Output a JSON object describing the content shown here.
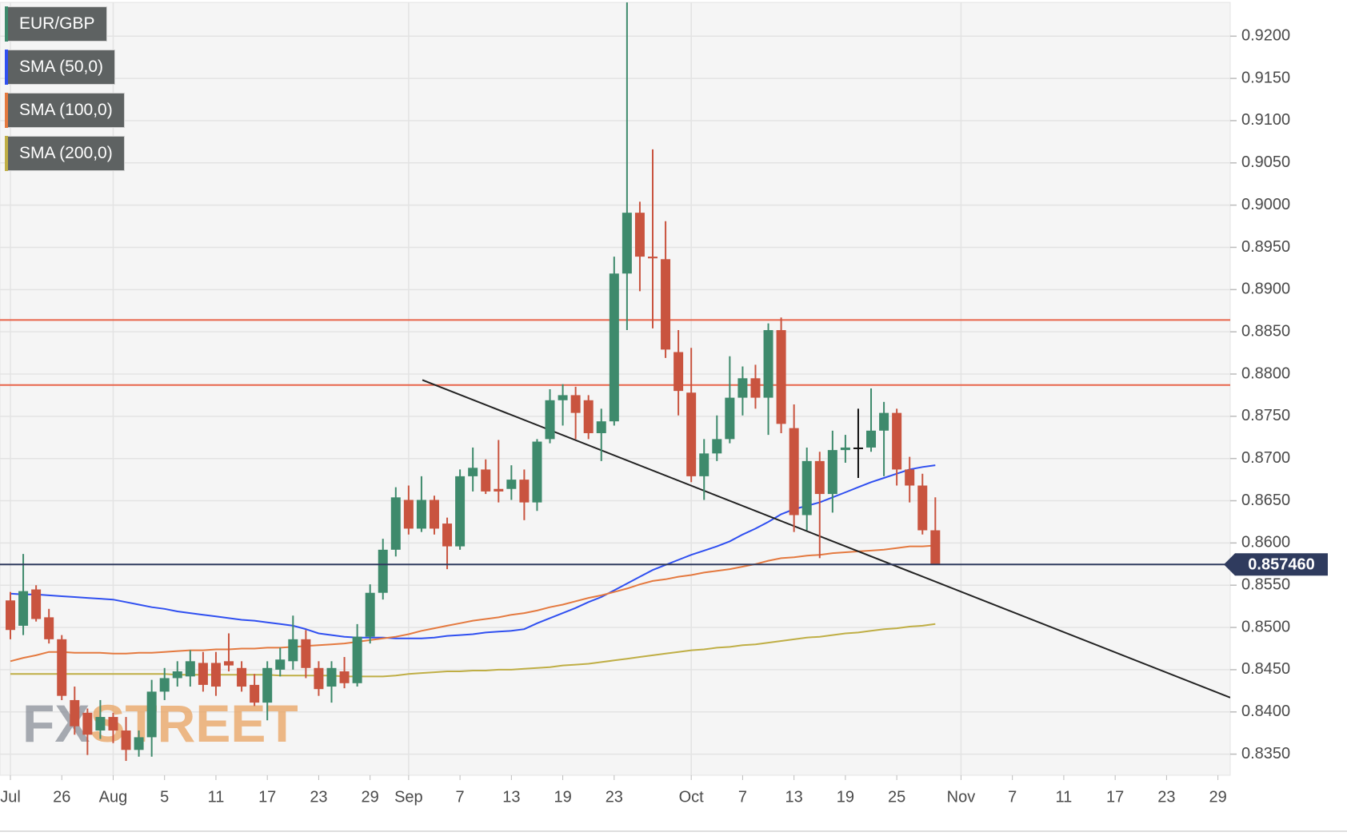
{
  "chart_data": {
    "type": "candlestick",
    "categories": [
      "Jul",
      null,
      null,
      null,
      "26",
      null,
      null,
      null,
      "Aug",
      null,
      null,
      null,
      "5",
      null,
      null,
      null,
      "11",
      null,
      null,
      null,
      "17",
      null,
      null,
      null,
      "23",
      null,
      null,
      null,
      "29",
      null,
      null,
      "Sep",
      null,
      null,
      null,
      "7",
      null,
      null,
      null,
      "13",
      null,
      null,
      null,
      "19",
      null,
      null,
      null,
      "23",
      null,
      null,
      null,
      null,
      null,
      "Oct",
      null,
      null,
      null,
      "7",
      null,
      null,
      null,
      "13",
      null,
      null,
      null,
      "19",
      null,
      null,
      null,
      "25",
      null,
      null,
      null,
      null,
      "Nov",
      null,
      null,
      null,
      "7",
      null,
      null,
      null,
      "11",
      null,
      null,
      null,
      "17",
      null,
      null,
      null,
      "23",
      null,
      null,
      null,
      "29"
    ],
    "series": [
      {
        "name": "EUR/GBP",
        "type": "candlestick",
        "up_color": "#3e8a6c",
        "down_color": "#c9543f",
        "doji_color": "#111111",
        "open": [
          0.8532,
          0.8502,
          0.8545,
          0.8512,
          0.8486,
          0.8414,
          0.8399,
          0.8378,
          0.8394,
          0.8378,
          0.8355,
          0.837,
          0.8424,
          0.844,
          0.8442,
          0.8458,
          0.8458,
          0.846,
          0.8452,
          0.8432,
          0.8411,
          0.845,
          0.846,
          0.8486,
          0.8452,
          0.843,
          0.8448,
          0.8434,
          0.8489,
          0.8541,
          0.8592,
          0.8651,
          0.8617,
          0.8651,
          0.8623,
          0.8596,
          0.8679,
          0.8687,
          0.8664,
          0.8664,
          0.8675,
          0.8648,
          0.8723,
          0.8769,
          0.8775,
          0.8769,
          0.873,
          0.8744,
          0.8919,
          0.8991,
          0.8939,
          0.8936,
          0.8826,
          0.8778,
          0.8679,
          0.8706,
          0.8723,
          0.8772,
          0.8795,
          0.8772,
          0.8852,
          0.8736,
          0.8633,
          0.8697,
          0.8658,
          0.871,
          0.8713,
          0.8713,
          0.8733,
          0.8754,
          0.8687,
          0.8668,
          0.8615,
          null,
          null,
          null,
          null,
          null,
          null,
          null,
          null,
          null,
          null,
          null,
          null,
          null,
          null,
          null,
          null,
          null,
          null,
          null,
          null,
          null,
          null
        ],
        "high": [
          0.8542,
          0.8587,
          0.855,
          0.8522,
          0.8491,
          0.843,
          0.8404,
          0.8414,
          0.8399,
          0.8394,
          0.8378,
          0.8438,
          0.8452,
          0.846,
          0.8473,
          0.8471,
          0.8471,
          0.8493,
          0.846,
          0.8445,
          0.846,
          0.8476,
          0.8514,
          0.8497,
          0.846,
          0.846,
          0.8465,
          0.8504,
          0.8551,
          0.8605,
          0.8666,
          0.8668,
          0.8679,
          0.8656,
          0.863,
          0.8687,
          0.8713,
          0.8699,
          0.8722,
          0.8692,
          0.8687,
          0.8723,
          0.8782,
          0.8788,
          0.8785,
          0.8775,
          0.8759,
          0.8939,
          0.924,
          0.9004,
          0.9066,
          0.8981,
          0.8852,
          0.8831,
          0.8723,
          0.8751,
          0.8821,
          0.8809,
          0.8811,
          0.886,
          0.8867,
          0.8764,
          0.8713,
          0.8708,
          0.8733,
          0.8728,
          0.8759,
          0.8783,
          0.8767,
          0.8759,
          0.8702,
          0.8682,
          0.8654,
          null,
          null,
          null,
          null,
          null,
          null,
          null,
          null,
          null,
          null,
          null,
          null,
          null,
          null,
          null,
          null,
          null,
          null,
          null,
          null,
          null,
          null
        ],
        "low": [
          0.8486,
          0.8491,
          0.8507,
          0.8481,
          0.8414,
          0.8373,
          0.8349,
          0.8368,
          0.8363,
          0.8342,
          0.8347,
          0.8347,
          0.8414,
          0.843,
          0.843,
          0.8424,
          0.8419,
          0.8448,
          0.8424,
          0.8407,
          0.839,
          0.8442,
          0.845,
          0.844,
          0.8419,
          0.8411,
          0.8428,
          0.843,
          0.8481,
          0.8533,
          0.8584,
          0.861,
          0.8613,
          0.861,
          0.8569,
          0.8592,
          0.8661,
          0.8658,
          0.8648,
          0.8651,
          0.8627,
          0.8638,
          0.8718,
          0.8739,
          0.8723,
          0.8723,
          0.8697,
          0.8739,
          0.8852,
          0.8898,
          0.8854,
          0.8819,
          0.8751,
          0.8672,
          0.8651,
          0.8697,
          0.8718,
          0.8751,
          0.8759,
          0.8728,
          0.873,
          0.8613,
          0.8615,
          0.8582,
          0.8636,
          0.8695,
          0.8677,
          0.8708,
          0.8679,
          0.8668,
          0.8648,
          0.861,
          0.8574,
          null,
          null,
          null,
          null,
          null,
          null,
          null,
          null,
          null,
          null,
          null,
          null,
          null,
          null,
          null,
          null,
          null,
          null,
          null,
          null,
          null,
          null
        ],
        "close": [
          0.8497,
          0.8543,
          0.851,
          0.8486,
          0.8419,
          0.8383,
          0.8373,
          0.8394,
          0.8378,
          0.8355,
          0.837,
          0.8424,
          0.844,
          0.8448,
          0.846,
          0.8432,
          0.843,
          0.8455,
          0.843,
          0.8411,
          0.8452,
          0.8462,
          0.8486,
          0.8452,
          0.8427,
          0.8452,
          0.8434,
          0.8489,
          0.8541,
          0.8592,
          0.8654,
          0.8617,
          0.8651,
          0.8617,
          0.8596,
          0.8679,
          0.8689,
          0.8661,
          0.8661,
          0.8675,
          0.8648,
          0.872,
          0.8769,
          0.8775,
          0.8754,
          0.873,
          0.8744,
          0.8919,
          0.8991,
          0.8939,
          0.8937,
          0.8829,
          0.878,
          0.8679,
          0.8706,
          0.8723,
          0.8772,
          0.8795,
          0.8772,
          0.8852,
          0.8741,
          0.8633,
          0.8697,
          0.8658,
          0.871,
          0.8713,
          0.8713,
          0.8733,
          0.8754,
          0.8687,
          0.8668,
          0.8615,
          0.85746,
          null,
          null,
          null,
          null,
          null,
          null,
          null,
          null,
          null,
          null,
          null,
          null,
          null,
          null,
          null,
          null,
          null,
          null,
          null,
          null,
          null,
          null
        ]
      },
      {
        "name": "SMA (50,0)",
        "type": "line",
        "color": "#2f4ff0",
        "values": [
          0.854,
          0.8539,
          0.8539,
          0.8538,
          0.8537,
          0.8536,
          0.8535,
          0.8534,
          0.8533,
          0.853,
          0.8527,
          0.8524,
          0.8522,
          0.8519,
          0.8517,
          0.8515,
          0.8513,
          0.8511,
          0.8509,
          0.8508,
          0.8506,
          0.8504,
          0.8502,
          0.8498,
          0.8493,
          0.8491,
          0.8489,
          0.8488,
          0.8488,
          0.8488,
          0.8487,
          0.8487,
          0.8487,
          0.8488,
          0.849,
          0.8491,
          0.8492,
          0.8494,
          0.8495,
          0.8496,
          0.8498,
          0.8505,
          0.8511,
          0.8517,
          0.8523,
          0.853,
          0.8536,
          0.8544,
          0.8552,
          0.856,
          0.8568,
          0.8574,
          0.858,
          0.8586,
          0.8591,
          0.8596,
          0.8602,
          0.861,
          0.8617,
          0.8625,
          0.8634,
          0.864,
          0.8644,
          0.8648,
          0.8654,
          0.866,
          0.8666,
          0.8672,
          0.8677,
          0.8682,
          0.8687,
          0.869,
          0.8692,
          null,
          null,
          null,
          null,
          null,
          null,
          null,
          null,
          null,
          null,
          null,
          null,
          null,
          null,
          null,
          null,
          null,
          null,
          null,
          null,
          null,
          null
        ]
      },
      {
        "name": "SMA (100,0)",
        "type": "line",
        "color": "#e4793f",
        "values": [
          0.846,
          0.8464,
          0.8467,
          0.8471,
          0.8471,
          0.847,
          0.847,
          0.847,
          0.8469,
          0.8469,
          0.847,
          0.847,
          0.8471,
          0.8472,
          0.8473,
          0.8473,
          0.8474,
          0.8474,
          0.8475,
          0.8475,
          0.8476,
          0.8476,
          0.8477,
          0.8478,
          0.8479,
          0.848,
          0.8481,
          0.8483,
          0.8485,
          0.8487,
          0.8489,
          0.8492,
          0.8496,
          0.8499,
          0.8502,
          0.8505,
          0.8508,
          0.851,
          0.8512,
          0.8515,
          0.8517,
          0.852,
          0.8524,
          0.8527,
          0.8531,
          0.8535,
          0.8538,
          0.8542,
          0.8546,
          0.8551,
          0.8555,
          0.8557,
          0.856,
          0.8562,
          0.8565,
          0.8567,
          0.8569,
          0.8572,
          0.8575,
          0.8579,
          0.8582,
          0.8583,
          0.8585,
          0.8586,
          0.8588,
          0.8589,
          0.859,
          0.8591,
          0.8592,
          0.8594,
          0.8596,
          0.8596,
          0.8597,
          null,
          null,
          null,
          null,
          null,
          null,
          null,
          null,
          null,
          null,
          null,
          null,
          null,
          null,
          null,
          null,
          null,
          null,
          null,
          null,
          null,
          null
        ]
      },
      {
        "name": "SMA (200,0)",
        "type": "line",
        "color": "#bfae45",
        "values": [
          0.8445,
          0.8445,
          0.8445,
          0.8445,
          0.8445,
          0.8445,
          0.8445,
          0.8445,
          0.8445,
          0.8445,
          0.8445,
          0.8445,
          0.8445,
          0.8444,
          0.8444,
          0.8444,
          0.8444,
          0.8444,
          0.8444,
          0.8444,
          0.8444,
          0.8443,
          0.8443,
          0.8443,
          0.8443,
          0.8443,
          0.8442,
          0.8442,
          0.8442,
          0.8442,
          0.8443,
          0.8445,
          0.8446,
          0.8447,
          0.8448,
          0.8448,
          0.8449,
          0.8449,
          0.845,
          0.845,
          0.8451,
          0.8452,
          0.8453,
          0.8455,
          0.8456,
          0.8457,
          0.8459,
          0.8461,
          0.8463,
          0.8465,
          0.8467,
          0.8469,
          0.8471,
          0.8473,
          0.8474,
          0.8476,
          0.8477,
          0.8479,
          0.848,
          0.8482,
          0.8484,
          0.8486,
          0.8488,
          0.8489,
          0.8491,
          0.8493,
          0.8494,
          0.8496,
          0.8498,
          0.8499,
          0.8501,
          0.8502,
          0.8504,
          null,
          null,
          null,
          null,
          null,
          null,
          null,
          null,
          null,
          null,
          null,
          null,
          null,
          null,
          null,
          null,
          null,
          null,
          null,
          null,
          null,
          null
        ]
      }
    ],
    "hlines": [
      {
        "value": 0.8864,
        "color": "#e8654b"
      },
      {
        "value": 0.8787,
        "color": "#e8654b"
      }
    ],
    "trendline": {
      "from": 0.8793,
      "to": 0.8417,
      "color": "#222222"
    },
    "price_line": {
      "value": 0.85746,
      "label": "0.857460",
      "color": "#2f3b5e"
    },
    "watermark": [
      "FX",
      "STREET"
    ],
    "ylim": [
      0.8325,
      0.924
    ],
    "yticks": [
      {
        "value": 0.835,
        "label": "0.8350"
      },
      {
        "value": 0.84,
        "label": "0.8400"
      },
      {
        "value": 0.845,
        "label": "0.8450"
      },
      {
        "value": 0.85,
        "label": "0.8500"
      },
      {
        "value": 0.855,
        "label": "0.8550"
      },
      {
        "value": 0.86,
        "label": "0.8600"
      },
      {
        "value": 0.865,
        "label": "0.8650"
      },
      {
        "value": 0.87,
        "label": "0.8700"
      },
      {
        "value": 0.875,
        "label": "0.8750"
      },
      {
        "value": 0.88,
        "label": "0.8800"
      },
      {
        "value": 0.885,
        "label": "0.8850"
      },
      {
        "value": 0.89,
        "label": "0.8900"
      },
      {
        "value": 0.895,
        "label": "0.8950"
      },
      {
        "value": 0.9,
        "label": "0.9000"
      },
      {
        "value": 0.905,
        "label": "0.9050"
      },
      {
        "value": 0.91,
        "label": "0.9100"
      },
      {
        "value": 0.915,
        "label": "0.9150"
      },
      {
        "value": 0.92,
        "label": "0.9200"
      }
    ],
    "grid": true
  }
}
